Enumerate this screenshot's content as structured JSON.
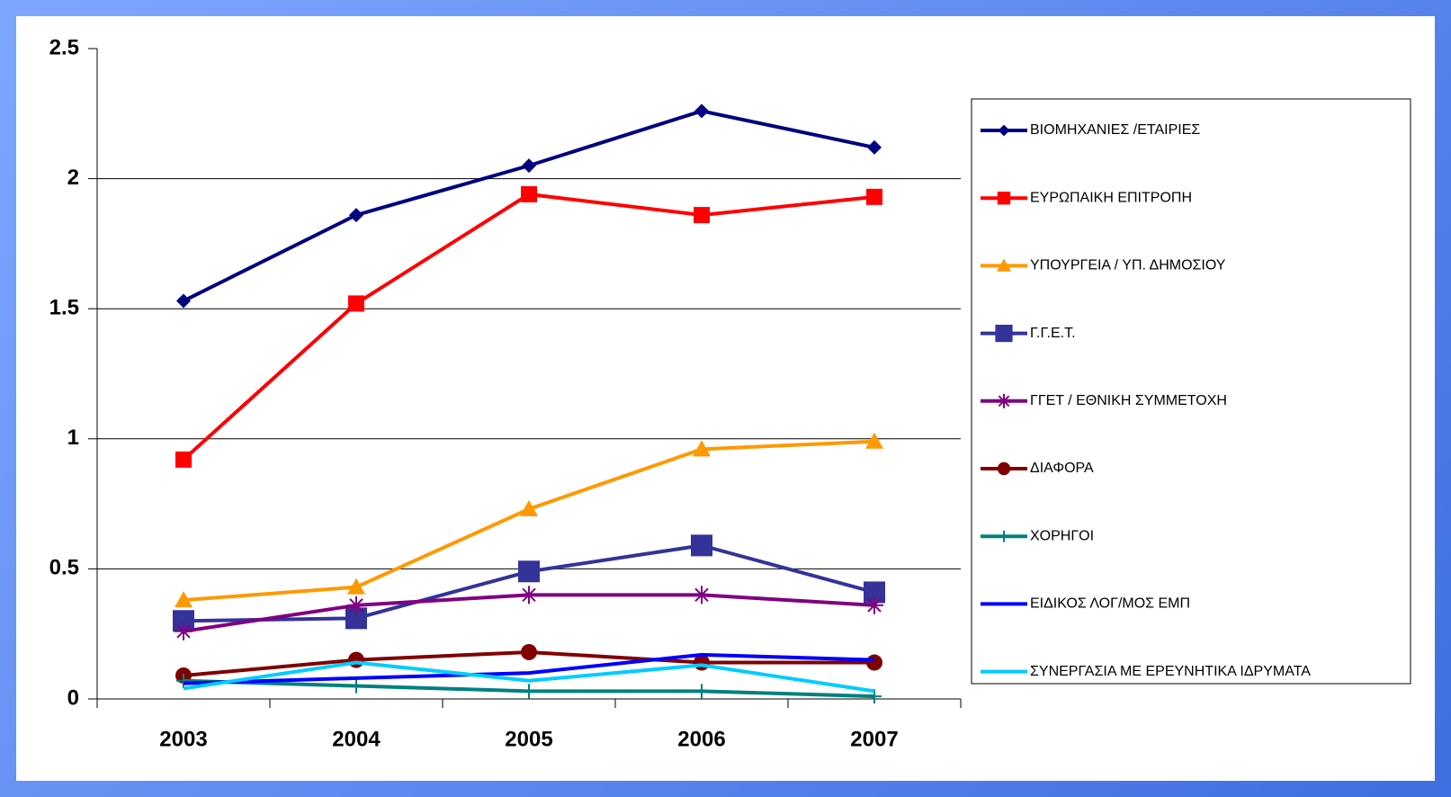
{
  "chart_data": {
    "type": "line",
    "categories": [
      "2003",
      "2004",
      "2005",
      "2006",
      "2007"
    ],
    "ylim": [
      0,
      2.5
    ],
    "yticks": [
      0,
      0.5,
      1,
      1.5,
      2,
      2.5
    ],
    "grid": true,
    "legend": "right",
    "series": [
      {
        "name": "ΒΙΟΜΗΧΑΝΙΕΣ /ΕΤΑΙΡΙΕΣ",
        "color": "#000080",
        "marker": "diamond",
        "values": [
          1.53,
          1.86,
          2.05,
          2.26,
          2.12
        ]
      },
      {
        "name": "ΕΥΡΩΠΑΙΚΗ ΕΠΙΤΡΟΠΗ",
        "color": "#ff0000",
        "marker": "square",
        "values": [
          0.92,
          1.52,
          1.94,
          1.86,
          1.93
        ]
      },
      {
        "name": "ΥΠΟΥΡΓΕΙΑ / ΥΠ. ΔΗΜΟΣΙΟΥ",
        "color": "#ff9900",
        "marker": "triangle",
        "values": [
          0.38,
          0.43,
          0.73,
          0.96,
          0.99
        ]
      },
      {
        "name": "Γ.Γ.Ε.Τ.",
        "color": "#333399",
        "marker": "bigsquare",
        "values": [
          0.3,
          0.31,
          0.49,
          0.59,
          0.41
        ]
      },
      {
        "name": "ΓΓΕΤ / ΕΘΝΙΚΗ ΣΥΜΜΕΤΟΧΗ",
        "color": "#800080",
        "marker": "star",
        "values": [
          0.26,
          0.36,
          0.4,
          0.4,
          0.36
        ]
      },
      {
        "name": "ΔΙΑΦΟΡΑ",
        "color": "#800000",
        "marker": "circle",
        "values": [
          0.09,
          0.15,
          0.18,
          0.14,
          0.14
        ]
      },
      {
        "name": "ΧΟΡΗΓΟΙ",
        "color": "#008080",
        "marker": "plus",
        "values": [
          0.07,
          0.05,
          0.03,
          0.03,
          0.01
        ]
      },
      {
        "name": "ΕΙΔΙΚΟΣ ΛΟΓ/ΜΟΣ ΕΜΠ",
        "color": "#0000ff",
        "marker": "none",
        "values": [
          0.06,
          0.08,
          0.1,
          0.17,
          0.15
        ]
      },
      {
        "name": "ΣΥΝΕΡΓΑΣΙΑ ΜΕ ΕΡΕΥΝΗΤΙΚΑ ΙΔΡΥΜΑΤΑ",
        "color": "#00ccff",
        "marker": "none",
        "values": [
          0.04,
          0.14,
          0.07,
          0.13,
          0.03
        ]
      }
    ]
  }
}
